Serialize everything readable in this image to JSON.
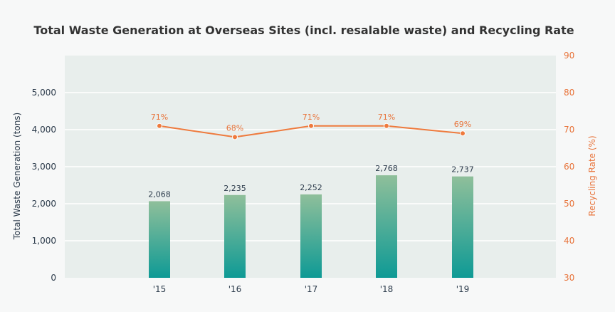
{
  "chart_data": {
    "type": "bar+line",
    "title": "Total Waste Generation at Overseas Sites (incl. resalable waste) and Recycling Rate",
    "categories": [
      "'15",
      "'16",
      "'17",
      "'18",
      "'19"
    ],
    "series": [
      {
        "name": "Total Waste Generation (tons)",
        "type": "bar",
        "axis": "left",
        "values": [
          2068,
          2235,
          2252,
          2768,
          2737
        ],
        "labels": [
          "2,068",
          "2,235",
          "2,252",
          "2,768",
          "2,737"
        ]
      },
      {
        "name": "Recycling Rate (%)",
        "type": "line",
        "axis": "right",
        "values": [
          71,
          68,
          71,
          71,
          69
        ],
        "labels": [
          "71%",
          "68%",
          "71%",
          "71%",
          "69%"
        ]
      }
    ],
    "ylabel": "Total Waste Generation (tons)",
    "ylabel_right": "Recycling Rate (%)",
    "ylim": [
      0,
      6000
    ],
    "yticks": [
      0,
      1000,
      2000,
      3000,
      4000,
      5000
    ],
    "ytick_labels": [
      "0",
      "1,000",
      "2,000",
      "3,000",
      "4,000",
      "5,000"
    ],
    "ylim_right": [
      30,
      90
    ],
    "yticks_right": [
      30,
      40,
      50,
      60,
      70,
      80,
      90
    ],
    "ytick_labels_right": [
      "30",
      "40",
      "50",
      "60",
      "70",
      "80",
      "90"
    ],
    "colors": {
      "bar_top": "#8fbf9a",
      "bar_bottom": "#0e9a95",
      "line": "#ee7a3d",
      "plot_bg": "#e8eeec",
      "grid": "#ffffff"
    }
  }
}
